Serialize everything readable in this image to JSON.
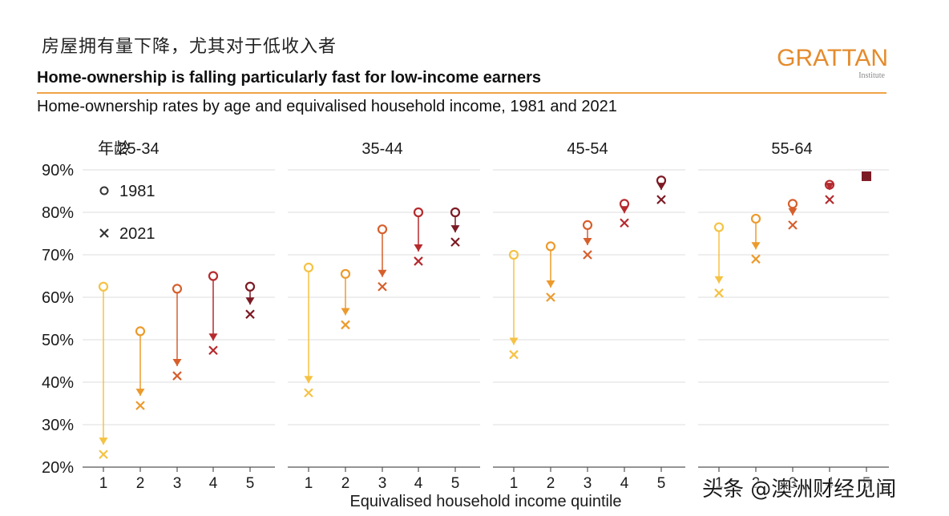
{
  "cn_title": "房屋拥有量下降，尤其对于低收入者",
  "title": "Home-ownership is falling particularly fast for low-income earners",
  "subtitle": "Home-ownership rates by age and equivalised household income, 1981 and 2021",
  "logo": {
    "text": "GRATTAN",
    "sub": "Institute"
  },
  "watermark": "头条 @澳洲财经见闻",
  "colors": [
    "#f5c244",
    "#ec9a2c",
    "#d65f2c",
    "#b52a2d",
    "#7c1a24"
  ],
  "chart_data": {
    "type": "scatter",
    "xlabel": "Equivalised household income quintile",
    "ylim": [
      20,
      90
    ],
    "yticks": [
      "20%",
      "30%",
      "40%",
      "50%",
      "60%",
      "70%",
      "80%",
      "90%"
    ],
    "age_label_prefix": "年龄",
    "quintiles": [
      "1",
      "2",
      "3",
      "4",
      "5"
    ],
    "legend": {
      "y1981": "1981",
      "y2021": "2021"
    },
    "panels": [
      {
        "label": "25-34",
        "y1981": [
          62.5,
          52,
          62,
          65,
          62.5
        ],
        "y2021": [
          23,
          34.5,
          41.5,
          47.5,
          56
        ]
      },
      {
        "label": "35-44",
        "y1981": [
          67,
          65.5,
          76,
          80,
          80
        ],
        "y2021": [
          37.5,
          53.5,
          62.5,
          68.5,
          73
        ]
      },
      {
        "label": "45-54",
        "y1981": [
          70,
          72,
          77,
          82,
          87.5
        ],
        "y2021": [
          46.5,
          60,
          70,
          77.5,
          83
        ]
      },
      {
        "label": "55-64",
        "y1981": [
          76.5,
          78.5,
          82,
          86.5,
          null
        ],
        "y2021": [
          61,
          69,
          77,
          83,
          88.5
        ]
      }
    ]
  }
}
